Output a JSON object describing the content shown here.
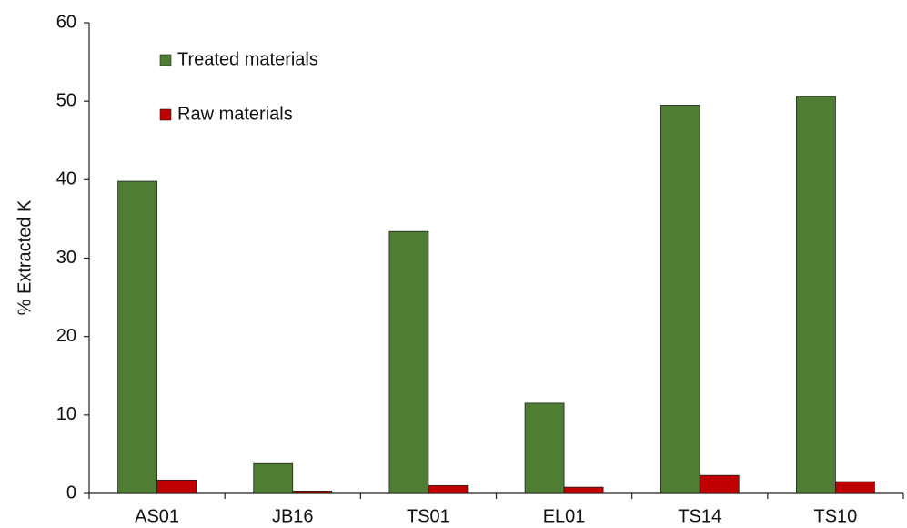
{
  "chart_data": {
    "type": "bar",
    "y_label": "% Extracted K",
    "categories": [
      "AS01",
      "JB16",
      "TS01",
      "EL01",
      "TS14",
      "TS10"
    ],
    "series": [
      {
        "name": "Treated materials",
        "color": "#4e7d33",
        "values": [
          39.8,
          3.8,
          33.4,
          11.5,
          49.5,
          50.6
        ]
      },
      {
        "name": "Raw materials",
        "color": "#c00000",
        "values": [
          1.7,
          0.3,
          1.0,
          0.8,
          2.3,
          1.5
        ]
      }
    ],
    "ylim": [
      0,
      60
    ],
    "yticks": [
      0,
      10,
      20,
      30,
      40,
      50,
      60
    ],
    "grid": false,
    "legend": "top-left"
  }
}
